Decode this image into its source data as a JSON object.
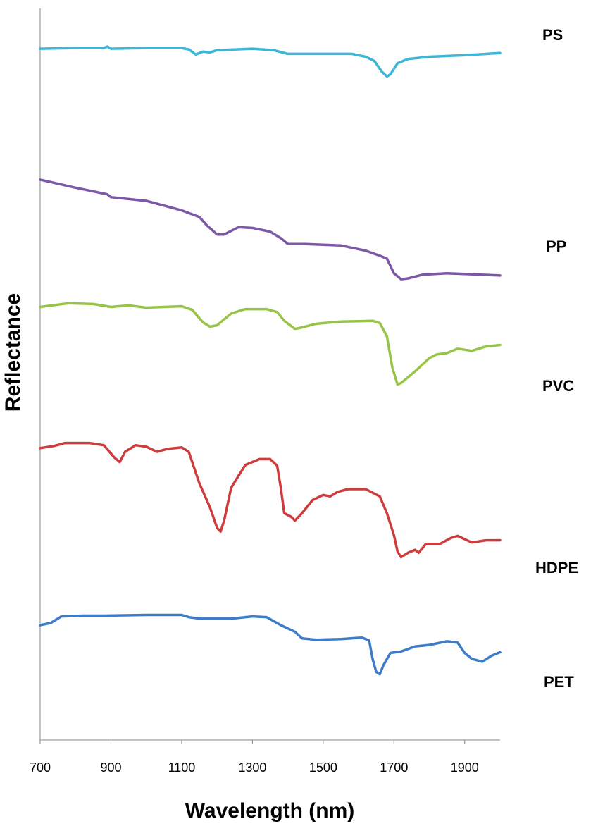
{
  "chart_data": {
    "type": "line",
    "xlabel": "Wavelength (nm)",
    "ylabel": "Reflectance",
    "xlim": [
      700,
      2000
    ],
    "x_ticks": [
      700,
      900,
      1100,
      1300,
      1500,
      1700,
      1900
    ],
    "y_ticks": [],
    "ylim": [
      0,
      100
    ],
    "grid": false,
    "legend": "direct labels at right end of each curve",
    "series": [
      {
        "name": "PS",
        "color": "#3db6d6",
        "points": [
          [
            700,
            94.5
          ],
          [
            800,
            94.6
          ],
          [
            880,
            94.6
          ],
          [
            890,
            94.8
          ],
          [
            900,
            94.5
          ],
          [
            1000,
            94.6
          ],
          [
            1100,
            94.6
          ],
          [
            1120,
            94.4
          ],
          [
            1140,
            93.7
          ],
          [
            1160,
            94.1
          ],
          [
            1180,
            94.0
          ],
          [
            1200,
            94.3
          ],
          [
            1300,
            94.5
          ],
          [
            1360,
            94.3
          ],
          [
            1400,
            93.8
          ],
          [
            1500,
            93.8
          ],
          [
            1580,
            93.8
          ],
          [
            1620,
            93.4
          ],
          [
            1645,
            92.8
          ],
          [
            1665,
            91.4
          ],
          [
            1680,
            90.7
          ],
          [
            1690,
            91.0
          ],
          [
            1710,
            92.5
          ],
          [
            1740,
            93.1
          ],
          [
            1760,
            93.2
          ],
          [
            1800,
            93.4
          ],
          [
            1900,
            93.6
          ],
          [
            2000,
            93.9
          ]
        ]
      },
      {
        "name": "PP",
        "color": "#7b59a6",
        "points": [
          [
            700,
            76.6
          ],
          [
            800,
            75.5
          ],
          [
            890,
            74.6
          ],
          [
            900,
            74.2
          ],
          [
            1000,
            73.7
          ],
          [
            1100,
            72.4
          ],
          [
            1150,
            71.5
          ],
          [
            1170,
            70.4
          ],
          [
            1200,
            69.1
          ],
          [
            1220,
            69.1
          ],
          [
            1260,
            70.1
          ],
          [
            1300,
            70.0
          ],
          [
            1350,
            69.5
          ],
          [
            1380,
            68.6
          ],
          [
            1400,
            67.8
          ],
          [
            1450,
            67.8
          ],
          [
            1500,
            67.7
          ],
          [
            1550,
            67.6
          ],
          [
            1620,
            66.9
          ],
          [
            1660,
            66.2
          ],
          [
            1680,
            65.8
          ],
          [
            1700,
            63.8
          ],
          [
            1720,
            63.0
          ],
          [
            1740,
            63.1
          ],
          [
            1780,
            63.6
          ],
          [
            1850,
            63.8
          ],
          [
            1900,
            63.7
          ],
          [
            2000,
            63.5
          ]
        ]
      },
      {
        "name": "PVC",
        "color": "#97c447",
        "points": [
          [
            700,
            59.2
          ],
          [
            780,
            59.7
          ],
          [
            850,
            59.6
          ],
          [
            900,
            59.2
          ],
          [
            950,
            59.4
          ],
          [
            1000,
            59.1
          ],
          [
            1100,
            59.3
          ],
          [
            1130,
            58.8
          ],
          [
            1160,
            57.1
          ],
          [
            1180,
            56.5
          ],
          [
            1200,
            56.7
          ],
          [
            1240,
            58.3
          ],
          [
            1280,
            58.9
          ],
          [
            1340,
            58.9
          ],
          [
            1370,
            58.5
          ],
          [
            1390,
            57.3
          ],
          [
            1420,
            56.2
          ],
          [
            1440,
            56.4
          ],
          [
            1480,
            56.9
          ],
          [
            1550,
            57.2
          ],
          [
            1640,
            57.3
          ],
          [
            1660,
            57.0
          ],
          [
            1680,
            55.2
          ],
          [
            1695,
            51.0
          ],
          [
            1710,
            48.6
          ],
          [
            1720,
            48.8
          ],
          [
            1760,
            50.4
          ],
          [
            1800,
            52.2
          ],
          [
            1820,
            52.7
          ],
          [
            1850,
            52.9
          ],
          [
            1880,
            53.5
          ],
          [
            1920,
            53.2
          ],
          [
            1960,
            53.8
          ],
          [
            2000,
            54.0
          ]
        ]
      },
      {
        "name": "HDPE",
        "color": "#cd3d3d",
        "points": [
          [
            700,
            39.9
          ],
          [
            740,
            40.2
          ],
          [
            770,
            40.6
          ],
          [
            840,
            40.6
          ],
          [
            880,
            40.3
          ],
          [
            910,
            38.6
          ],
          [
            925,
            38.0
          ],
          [
            940,
            39.4
          ],
          [
            970,
            40.3
          ],
          [
            1000,
            40.1
          ],
          [
            1030,
            39.4
          ],
          [
            1060,
            39.8
          ],
          [
            1100,
            40.0
          ],
          [
            1120,
            39.4
          ],
          [
            1150,
            35.1
          ],
          [
            1180,
            31.8
          ],
          [
            1200,
            29.0
          ],
          [
            1210,
            28.5
          ],
          [
            1220,
            30.0
          ],
          [
            1240,
            34.5
          ],
          [
            1280,
            37.6
          ],
          [
            1320,
            38.4
          ],
          [
            1350,
            38.4
          ],
          [
            1370,
            37.5
          ],
          [
            1380,
            34.5
          ],
          [
            1390,
            31.0
          ],
          [
            1410,
            30.5
          ],
          [
            1420,
            30.0
          ],
          [
            1440,
            31.0
          ],
          [
            1470,
            32.8
          ],
          [
            1500,
            33.5
          ],
          [
            1520,
            33.3
          ],
          [
            1540,
            33.9
          ],
          [
            1570,
            34.3
          ],
          [
            1620,
            34.3
          ],
          [
            1660,
            33.3
          ],
          [
            1680,
            31.0
          ],
          [
            1700,
            28.0
          ],
          [
            1710,
            25.8
          ],
          [
            1720,
            25.0
          ],
          [
            1740,
            25.6
          ],
          [
            1760,
            26.0
          ],
          [
            1770,
            25.6
          ],
          [
            1790,
            26.8
          ],
          [
            1830,
            26.8
          ],
          [
            1860,
            27.6
          ],
          [
            1880,
            27.9
          ],
          [
            1920,
            27.0
          ],
          [
            1960,
            27.3
          ],
          [
            2000,
            27.3
          ]
        ]
      },
      {
        "name": "PET",
        "color": "#3c7cc8",
        "points": [
          [
            700,
            15.7
          ],
          [
            730,
            16.0
          ],
          [
            760,
            16.9
          ],
          [
            820,
            17.0
          ],
          [
            880,
            17.0
          ],
          [
            1000,
            17.1
          ],
          [
            1100,
            17.1
          ],
          [
            1120,
            16.8
          ],
          [
            1150,
            16.6
          ],
          [
            1180,
            16.6
          ],
          [
            1240,
            16.6
          ],
          [
            1300,
            16.9
          ],
          [
            1340,
            16.8
          ],
          [
            1380,
            15.7
          ],
          [
            1420,
            14.8
          ],
          [
            1440,
            13.9
          ],
          [
            1480,
            13.7
          ],
          [
            1550,
            13.8
          ],
          [
            1610,
            14.0
          ],
          [
            1630,
            13.6
          ],
          [
            1640,
            11.0
          ],
          [
            1650,
            9.3
          ],
          [
            1660,
            9.0
          ],
          [
            1670,
            10.2
          ],
          [
            1690,
            11.9
          ],
          [
            1720,
            12.1
          ],
          [
            1760,
            12.8
          ],
          [
            1800,
            13.0
          ],
          [
            1850,
            13.5
          ],
          [
            1880,
            13.3
          ],
          [
            1900,
            11.9
          ],
          [
            1920,
            11.1
          ],
          [
            1950,
            10.7
          ],
          [
            1975,
            11.5
          ],
          [
            2000,
            12.0
          ]
        ]
      }
    ]
  }
}
